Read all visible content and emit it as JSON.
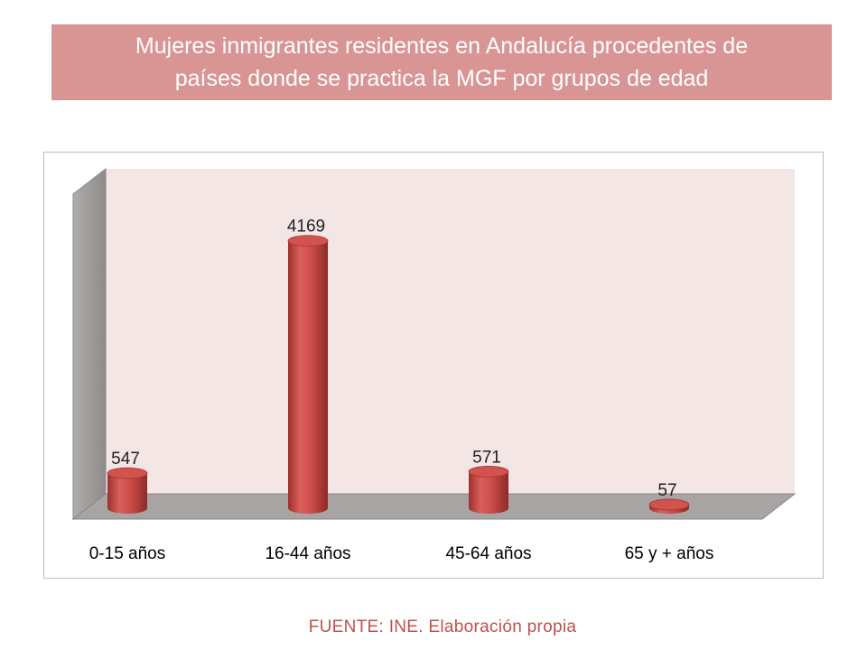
{
  "title": "Mujeres inmigrantes residentes en Andalucía procedentes de\npaíses donde se practica la MGF por grupos de edad",
  "source": "FUENTE: INE. Elaboración propia",
  "colors": {
    "title_bg": "#d99594",
    "bar": "#c0504d",
    "wall": "#f5e6e6",
    "floor": "#a9a4a4",
    "source_text": "#c0504d"
  },
  "chart_data": {
    "type": "bar",
    "style": "3d-cylinder",
    "title": "",
    "xlabel": "",
    "ylabel": "",
    "categories": [
      "0-15 años",
      "16-44 años",
      "45-64 años",
      "65 y + años"
    ],
    "values": [
      547,
      4169,
      571,
      57
    ],
    "data_labels": [
      "547",
      "4169",
      "571",
      "57"
    ],
    "ylim": [
      0,
      4700
    ],
    "grid": false,
    "legend": "none"
  }
}
